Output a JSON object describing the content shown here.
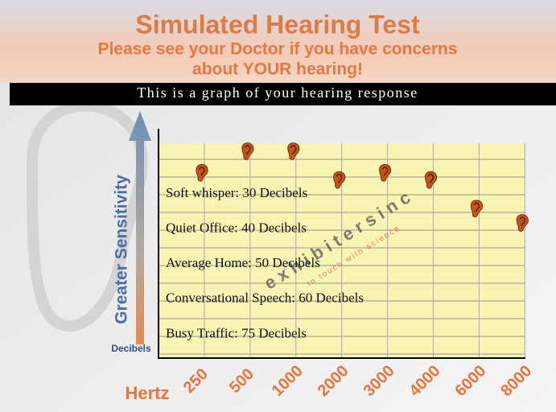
{
  "chart_data": {
    "type": "hearing",
    "title": "Simulated Hearing Test",
    "subtitle": [
      "Please see your Doctor if you have concerns",
      "about YOUR hearing!"
    ],
    "banner": "This is a graph of your hearing response",
    "y_label": "Greater Sensitivity",
    "y_unit": "Decibels",
    "x_label": "Hertz",
    "categories": [
      "250",
      "500",
      "1000",
      "2000",
      "3000",
      "4000",
      "6000",
      "8000"
    ],
    "values": [
      23,
      17,
      17,
      25,
      23,
      25,
      33,
      37
    ],
    "ylim": [
      75,
      15
    ],
    "color": "#c4541c",
    "annotations": [
      "Soft whisper: 30 Decibels",
      "Quiet Office: 40 Decibels",
      "Average Home: 50 Decibels",
      "Conversational Speech: 60 Decibels",
      "Busy Traffic: 75 Decibels"
    ],
    "watermark": [
      "e x h i b i t e r s   i n c",
      "in touch with science"
    ]
  }
}
